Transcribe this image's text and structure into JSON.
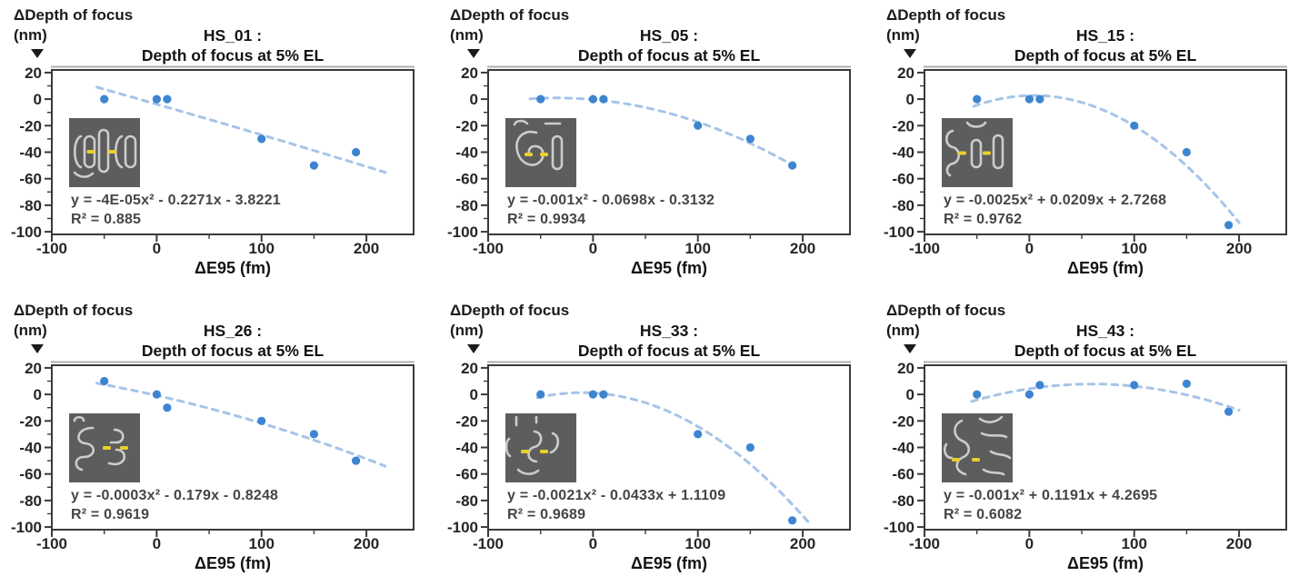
{
  "figure": {
    "ylabel_line1": "ΔDepth of focus",
    "ylabel_line2": "(nm)",
    "xlabel": "ΔE95 (fm)",
    "colors": {
      "point": "#3d85d1",
      "trend": "#a6c4e8",
      "axis": "#3a3a3a",
      "equation_text": "#454545",
      "inset_bg": "#5d5d5d",
      "inset_line": "#cccccc",
      "inset_marker": "#e9cf2e"
    }
  },
  "chart_data": [
    {
      "type": "scatter",
      "name": "HS_01",
      "title_line1": "HS_01 :",
      "title_line2": "Depth of focus at 5% EL",
      "ylabel_line1": "ΔDepth of focus",
      "ylabel_line2": "(nm)",
      "xlabel": "ΔE95 (fm)",
      "x": [
        -50,
        0,
        10,
        100,
        150,
        190
      ],
      "y": [
        0,
        0,
        0,
        -30,
        -50,
        -40
      ],
      "fit": {
        "type": "quadratic",
        "a": -4e-05,
        "b": -0.2271,
        "c": -3.8221,
        "x_range": [
          -57,
          218
        ]
      },
      "equation": "y = -4E-05x² - 0.2271x - 3.8221",
      "r2": "R² = 0.885",
      "xlim": [
        -100,
        245
      ],
      "ylim": [
        -102,
        22
      ],
      "x_ticks": [
        -100,
        0,
        100,
        200
      ],
      "x_minor_ticks": [
        -50,
        50,
        150
      ],
      "y_ticks": [
        20,
        0,
        -20,
        -40,
        -60,
        -80,
        -100
      ],
      "y_minor_ticks": [
        10,
        -10,
        -30,
        -50,
        -70,
        -90
      ],
      "grid": false,
      "legend": false
    },
    {
      "type": "scatter",
      "name": "HS_05",
      "title_line1": "HS_05 :",
      "title_line2": "Depth of focus at 5% EL",
      "ylabel_line1": "ΔDepth of focus",
      "ylabel_line2": "(nm)",
      "xlabel": "ΔE95 (fm)",
      "x": [
        -50,
        0,
        10,
        100,
        150,
        190
      ],
      "y": [
        0,
        0,
        0,
        -20,
        -30,
        -50
      ],
      "fit": {
        "type": "quadratic",
        "a": -0.001,
        "b": -0.0698,
        "c": -0.3132,
        "x_range": [
          -60,
          196
        ]
      },
      "equation": "y = -0.001x² - 0.0698x - 0.3132",
      "r2": "R² = 0.9934",
      "xlim": [
        -100,
        245
      ],
      "ylim": [
        -102,
        22
      ],
      "x_ticks": [
        -100,
        0,
        100,
        200
      ],
      "x_minor_ticks": [
        -50,
        50,
        150
      ],
      "y_ticks": [
        20,
        0,
        -20,
        -40,
        -60,
        -80,
        -100
      ],
      "y_minor_ticks": [
        10,
        -10,
        -30,
        -50,
        -70,
        -90
      ],
      "grid": false,
      "legend": false
    },
    {
      "type": "scatter",
      "name": "HS_15",
      "title_line1": "HS_15 :",
      "title_line2": "Depth of focus at 5% EL",
      "ylabel_line1": "ΔDepth of focus",
      "ylabel_line2": "(nm)",
      "xlabel": "ΔE95 (fm)",
      "x": [
        -50,
        0,
        10,
        100,
        150,
        190
      ],
      "y": [
        0,
        0,
        0,
        -20,
        -40,
        -95
      ],
      "fit": {
        "type": "quadratic",
        "a": -0.0025,
        "b": 0.0209,
        "c": 2.7268,
        "x_range": [
          -53,
          200
        ]
      },
      "equation": "y = -0.0025x² + 0.0209x + 2.7268",
      "r2": "R² = 0.9762",
      "xlim": [
        -100,
        245
      ],
      "ylim": [
        -102,
        22
      ],
      "x_ticks": [
        -100,
        0,
        100,
        200
      ],
      "x_minor_ticks": [
        -50,
        50,
        150
      ],
      "y_ticks": [
        20,
        0,
        -20,
        -40,
        -60,
        -80,
        -100
      ],
      "y_minor_ticks": [
        10,
        -10,
        -30,
        -50,
        -70,
        -90
      ],
      "grid": false,
      "legend": false
    },
    {
      "type": "scatter",
      "name": "HS_26",
      "title_line1": "HS_26 :",
      "title_line2": "Depth of focus at 5% EL",
      "ylabel_line1": "ΔDepth of focus",
      "ylabel_line2": "(nm)",
      "xlabel": "ΔE95 (fm)",
      "x": [
        -50,
        0,
        10,
        100,
        150,
        190
      ],
      "y": [
        10,
        0,
        -10,
        -20,
        -30,
        -50
      ],
      "fit": {
        "type": "quadratic",
        "a": -0.0003,
        "b": -0.179,
        "c": -0.8248,
        "x_range": [
          -57,
          218
        ]
      },
      "equation": "y = -0.0003x² - 0.179x - 0.8248",
      "r2": "R² = 0.9619",
      "xlim": [
        -100,
        245
      ],
      "ylim": [
        -102,
        22
      ],
      "x_ticks": [
        -100,
        0,
        100,
        200
      ],
      "x_minor_ticks": [
        -50,
        50,
        150
      ],
      "y_ticks": [
        20,
        0,
        -20,
        -40,
        -60,
        -80,
        -100
      ],
      "y_minor_ticks": [
        10,
        -10,
        -30,
        -50,
        -70,
        -90
      ],
      "grid": false,
      "legend": false
    },
    {
      "type": "scatter",
      "name": "HS_33",
      "title_line1": "HS_33 :",
      "title_line2": "Depth of focus at 5% EL",
      "ylabel_line1": "ΔDepth of focus",
      "ylabel_line2": "(nm)",
      "xlabel": "ΔE95 (fm)",
      "x": [
        -50,
        0,
        10,
        100,
        150,
        190
      ],
      "y": [
        0,
        0,
        0,
        -30,
        -40,
        -95
      ],
      "fit": {
        "type": "quadratic",
        "a": -0.0021,
        "b": -0.0433,
        "c": 1.1109,
        "x_range": [
          -53,
          205
        ]
      },
      "equation": "y = -0.0021x² - 0.0433x + 1.1109",
      "r2": "R² = 0.9689",
      "xlim": [
        -100,
        245
      ],
      "ylim": [
        -102,
        22
      ],
      "x_ticks": [
        -100,
        0,
        100,
        200
      ],
      "x_minor_ticks": [
        -50,
        50,
        150
      ],
      "y_ticks": [
        20,
        0,
        -20,
        -40,
        -60,
        -80,
        -100
      ],
      "y_minor_ticks": [
        10,
        -10,
        -30,
        -50,
        -70,
        -90
      ],
      "grid": false,
      "legend": false
    },
    {
      "type": "scatter",
      "name": "HS_43",
      "title_line1": "HS_43 :",
      "title_line2": "Depth of focus at 5% EL",
      "ylabel_line1": "ΔDepth of focus",
      "ylabel_line2": "(nm)",
      "xlabel": "ΔE95 (fm)",
      "x": [
        -50,
        0,
        10,
        100,
        150,
        190
      ],
      "y": [
        0,
        0,
        7,
        7,
        8,
        -13
      ],
      "fit": {
        "type": "quadratic",
        "a": -0.001,
        "b": 0.1191,
        "c": 4.2695,
        "x_range": [
          -55,
          200
        ]
      },
      "equation": "y = -0.001x² + 0.1191x + 4.2695",
      "r2": "R² = 0.6082",
      "xlim": [
        -100,
        245
      ],
      "ylim": [
        -102,
        22
      ],
      "x_ticks": [
        -100,
        0,
        100,
        200
      ],
      "x_minor_ticks": [
        -50,
        50,
        150
      ],
      "y_ticks": [
        20,
        0,
        -20,
        -40,
        -60,
        -80,
        -100
      ],
      "y_minor_ticks": [
        10,
        -10,
        -30,
        -50,
        -70,
        -90
      ],
      "grid": false,
      "legend": false
    }
  ]
}
